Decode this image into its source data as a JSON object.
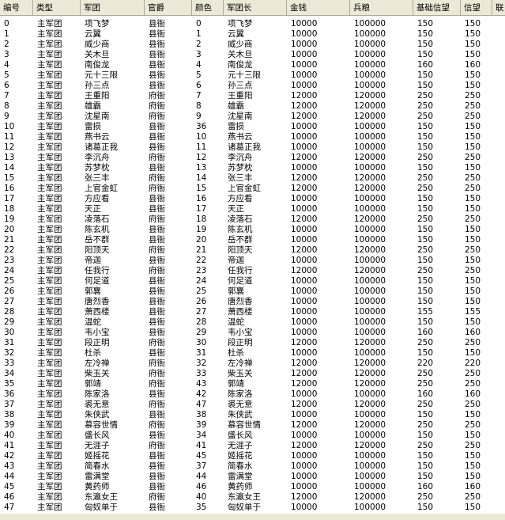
{
  "header": {
    "columns": [
      "编号",
      "类型",
      "军团",
      "官爵",
      "颜色",
      "军团长",
      "金钱",
      "兵粮",
      "基础信望",
      "信望",
      "联"
    ]
  },
  "table": {
    "rows": [
      [
        0,
        "主军团",
        "项飞梦",
        "县衙",
        0,
        "项飞梦",
        10000,
        100000,
        150,
        150
      ],
      [
        1,
        "主军团",
        "云翼",
        "县衙",
        1,
        "云翼",
        10000,
        100000,
        150,
        150
      ],
      [
        2,
        "主军团",
        "威少商",
        "县衙",
        2,
        "威少商",
        10000,
        100000,
        150,
        150
      ],
      [
        3,
        "主军团",
        "关木旦",
        "县衙",
        3,
        "关木旦",
        10000,
        100000,
        150,
        150
      ],
      [
        4,
        "主军团",
        "南俊龙",
        "县衙",
        4,
        "南俊龙",
        10000,
        100000,
        160,
        160
      ],
      [
        5,
        "主军团",
        "元十三限",
        "县衙",
        5,
        "元十三限",
        10000,
        100000,
        150,
        150
      ],
      [
        6,
        "主军团",
        "孙三点",
        "县衙",
        6,
        "孙三点",
        10000,
        100000,
        150,
        150
      ],
      [
        7,
        "主军团",
        "王重阳",
        "府衙",
        7,
        "王重阳",
        12000,
        120000,
        250,
        250
      ],
      [
        8,
        "主军团",
        "雄霸",
        "府衙",
        8,
        "雄霸",
        12000,
        120000,
        250,
        250
      ],
      [
        9,
        "主军团",
        "沈星南",
        "府衙",
        9,
        "沈星南",
        12000,
        120000,
        250,
        250
      ],
      [
        10,
        "主军团",
        "雷损",
        "县衙",
        36,
        "雷损",
        10000,
        100000,
        150,
        150
      ],
      [
        11,
        "主军团",
        "燕书云",
        "县衙",
        10,
        "燕书云",
        10000,
        100000,
        150,
        150
      ],
      [
        12,
        "主军团",
        "诸葛正我",
        "县衙",
        11,
        "诸葛正我",
        10000,
        100000,
        150,
        150
      ],
      [
        13,
        "主军团",
        "李沉舟",
        "府衙",
        12,
        "李沉舟",
        12000,
        120000,
        250,
        250
      ],
      [
        14,
        "主军团",
        "苏梦枕",
        "县衙",
        13,
        "苏梦枕",
        10000,
        100000,
        150,
        150
      ],
      [
        15,
        "主军团",
        "张三丰",
        "府衙",
        14,
        "张三丰",
        12000,
        120000,
        250,
        250
      ],
      [
        16,
        "主军团",
        "上官金虹",
        "府衙",
        15,
        "上官金虹",
        12000,
        120000,
        250,
        250
      ],
      [
        17,
        "主军团",
        "方应看",
        "县衙",
        16,
        "方应看",
        10000,
        100000,
        150,
        150
      ],
      [
        18,
        "主军团",
        "天正",
        "县衙",
        17,
        "天正",
        10000,
        100000,
        150,
        150
      ],
      [
        19,
        "主军团",
        "凌落石",
        "府衙",
        18,
        "凌落石",
        12000,
        120000,
        250,
        250
      ],
      [
        20,
        "主军团",
        "陈玄机",
        "县衙",
        19,
        "陈玄机",
        10000,
        100000,
        150,
        150
      ],
      [
        21,
        "主军团",
        "岳不群",
        "县衙",
        20,
        "岳不群",
        10000,
        100000,
        150,
        150
      ],
      [
        22,
        "主军团",
        "阳顶天",
        "府衙",
        21,
        "阳顶天",
        12000,
        120000,
        250,
        250
      ],
      [
        23,
        "主军团",
        "帝迦",
        "县衙",
        22,
        "帝迦",
        10000,
        100000,
        150,
        150
      ],
      [
        24,
        "主军团",
        "任我行",
        "府衙",
        23,
        "任我行",
        12000,
        120000,
        250,
        250
      ],
      [
        25,
        "主军团",
        "何足道",
        "县衙",
        24,
        "何足道",
        10000,
        100000,
        150,
        150
      ],
      [
        26,
        "主军团",
        "郭襄",
        "县衙",
        25,
        "郭襄",
        10000,
        100000,
        150,
        150
      ],
      [
        27,
        "主军团",
        "唐烈香",
        "县衙",
        26,
        "唐烈香",
        10000,
        100000,
        150,
        150
      ],
      [
        28,
        "主军团",
        "萧西楼",
        "县衙",
        27,
        "萧西楼",
        10000,
        100000,
        155,
        155
      ],
      [
        29,
        "主军团",
        "温蛇",
        "县衙",
        28,
        "温蛇",
        10000,
        100000,
        150,
        150
      ],
      [
        30,
        "主军团",
        "韦小宝",
        "县衙",
        29,
        "韦小宝",
        10000,
        100000,
        160,
        160
      ],
      [
        31,
        "主军团",
        "段正明",
        "府衙",
        30,
        "段正明",
        12000,
        120000,
        250,
        250
      ],
      [
        32,
        "主军团",
        "杜杀",
        "县衙",
        31,
        "杜杀",
        10000,
        100000,
        150,
        150
      ],
      [
        33,
        "主军团",
        "左冷禅",
        "府衙",
        32,
        "左冷禅",
        12000,
        120000,
        220,
        220
      ],
      [
        34,
        "主军团",
        "柴玉关",
        "府衙",
        33,
        "柴玉关",
        12000,
        120000,
        250,
        250
      ],
      [
        35,
        "主军团",
        "郭靖",
        "府衙",
        43,
        "郭靖",
        12000,
        120000,
        250,
        250
      ],
      [
        36,
        "主军团",
        "陈家洛",
        "县衙",
        42,
        "陈家洛",
        10000,
        100000,
        160,
        160
      ],
      [
        37,
        "主军团",
        "裘无意",
        "府衙",
        47,
        "裘无意",
        12000,
        120000,
        250,
        250
      ],
      [
        38,
        "主军团",
        "朱侠武",
        "县衙",
        38,
        "朱侠武",
        10000,
        100000,
        150,
        150
      ],
      [
        39,
        "主军团",
        "慕容世情",
        "府衙",
        39,
        "慕容世情",
        12000,
        120000,
        250,
        250
      ],
      [
        40,
        "主军团",
        "盛长风",
        "县衙",
        34,
        "盛长风",
        10000,
        100000,
        150,
        150
      ],
      [
        41,
        "主军团",
        "无涯子",
        "府衙",
        41,
        "无涯子",
        12000,
        120000,
        250,
        250
      ],
      [
        42,
        "主军团",
        "姬摇花",
        "县衙",
        45,
        "姬摇花",
        10000,
        100000,
        150,
        150
      ],
      [
        43,
        "主军团",
        "简春水",
        "县衙",
        37,
        "简春水",
        10000,
        100000,
        150,
        150
      ],
      [
        44,
        "主军团",
        "雷满堂",
        "县衙",
        44,
        "雷满堂",
        10000,
        100000,
        150,
        150
      ],
      [
        45,
        "主军团",
        "黄药师",
        "县衙",
        46,
        "黄药师",
        10000,
        100000,
        160,
        160
      ],
      [
        46,
        "主军团",
        "东瀛女王",
        "府衙",
        40,
        "东瀛女王",
        12000,
        120000,
        250,
        250
      ],
      [
        47,
        "主军团",
        "匈奴单于",
        "县衙",
        35,
        "匈奴单于",
        10000,
        100000,
        150,
        150
      ]
    ]
  }
}
